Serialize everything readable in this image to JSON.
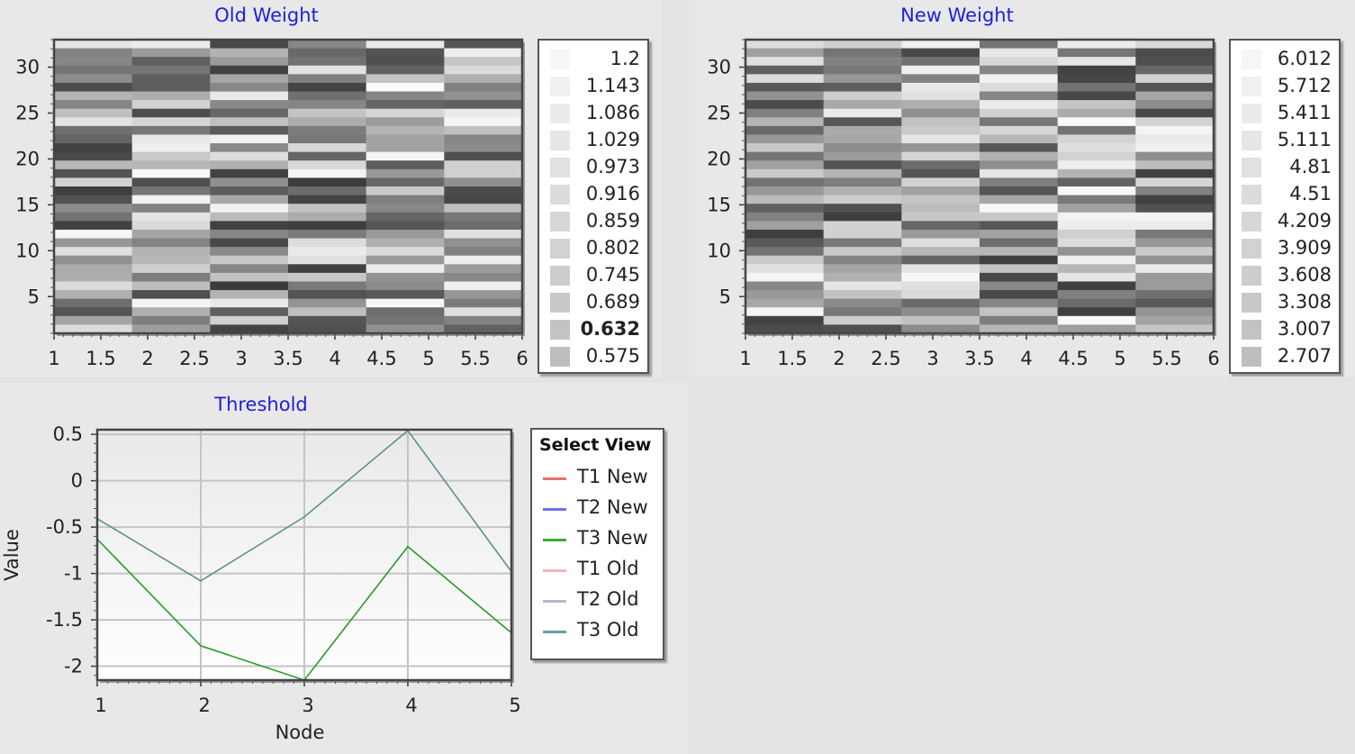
{
  "old_weight": {
    "title": "Old Weight",
    "legend": [
      "1.2",
      "1.143",
      "1.086",
      "1.029",
      "0.973",
      "0.916",
      "0.859",
      "0.802",
      "0.745",
      "0.689",
      "0.632",
      "0.575"
    ],
    "legend_highlight_index": 10,
    "legend_colors": [
      "#f6f6f6",
      "#f0f0f0",
      "#ebebeb",
      "#e6e6e6",
      "#e1e1e1",
      "#dcdcdc",
      "#d7d7d7",
      "#d2d2d2",
      "#cdcdcd",
      "#c8c8c8",
      "#c3c3c3",
      "#bebebe"
    ]
  },
  "new_weight": {
    "title": "New Weight",
    "legend": [
      "6.012",
      "5.712",
      "5.411",
      "5.111",
      "4.81",
      "4.51",
      "4.209",
      "3.909",
      "3.608",
      "3.308",
      "3.007",
      "2.707"
    ],
    "legend_colors": [
      "#f6f6f6",
      "#f0f0f0",
      "#ebebeb",
      "#e6e6e6",
      "#e1e1e1",
      "#dcdcdc",
      "#d7d7d7",
      "#d2d2d2",
      "#cdcdcd",
      "#c8c8c8",
      "#c3c3c3",
      "#bebebe"
    ]
  },
  "threshold": {
    "title": "Threshold",
    "select_view_title": "Select View",
    "select_view_items": [
      {
        "label": "T1 New",
        "color": "#e87070"
      },
      {
        "label": "T2 New",
        "color": "#7070e8"
      },
      {
        "label": "T3 New",
        "color": "#3aa83a"
      },
      {
        "label": "T1 Old",
        "color": "#f4b6b6"
      },
      {
        "label": "T2 Old",
        "color": "#b6b6d8"
      },
      {
        "label": "T3 Old",
        "color": "#6a9e9e"
      }
    ]
  },
  "chart_data": [
    {
      "type": "heatmap",
      "title": "Old Weight",
      "xlim": [
        1,
        6
      ],
      "ylim": [
        1,
        33
      ],
      "x_ticks": [
        "1",
        "1.5",
        "2",
        "2.5",
        "3",
        "3.5",
        "4",
        "4.5",
        "5",
        "5.5",
        "6"
      ],
      "y_ticks": [
        "5",
        "10",
        "15",
        "20",
        "25",
        "30"
      ],
      "colorscale": [
        "1.2",
        "1.143",
        "1.086",
        "1.029",
        "0.973",
        "0.916",
        "0.859",
        "0.802",
        "0.745",
        "0.689",
        "0.632",
        "0.575"
      ]
    },
    {
      "type": "heatmap",
      "title": "New Weight",
      "xlim": [
        1,
        6
      ],
      "ylim": [
        1,
        33
      ],
      "x_ticks": [
        "1",
        "1.5",
        "2",
        "2.5",
        "3",
        "3.5",
        "4",
        "4.5",
        "5",
        "5.5",
        "6"
      ],
      "y_ticks": [
        "5",
        "10",
        "15",
        "20",
        "25",
        "30"
      ],
      "colorscale": [
        "6.012",
        "5.712",
        "5.411",
        "5.111",
        "4.81",
        "4.51",
        "4.209",
        "3.909",
        "3.608",
        "3.308",
        "3.007",
        "2.707"
      ]
    },
    {
      "type": "line",
      "title": "Threshold",
      "xlabel": "Node",
      "ylabel": "Value",
      "x": [
        1,
        2,
        3,
        4,
        5
      ],
      "xlim": [
        1,
        5
      ],
      "ylim": [
        -2.15,
        0.55
      ],
      "x_ticks": [
        "1",
        "2",
        "3",
        "4",
        "5"
      ],
      "y_ticks": [
        {
          "v": 0.5,
          "label": "0.5"
        },
        {
          "v": 0,
          "label": "0"
        },
        {
          "v": -0.5,
          "label": "-0.5"
        },
        {
          "v": -1,
          "label": "-1"
        },
        {
          "v": -1.5,
          "label": "-1.5"
        },
        {
          "v": -2,
          "label": "-2"
        }
      ],
      "series": [
        {
          "name": "T3 New",
          "color": "#2a9a2a",
          "values": [
            -0.63,
            -1.78,
            -2.15,
            -0.71,
            -1.64
          ]
        },
        {
          "name": "T3 Old",
          "color": "#5f9090",
          "values": [
            -0.41,
            -1.08,
            -0.39,
            0.54,
            -0.98
          ]
        }
      ]
    }
  ]
}
